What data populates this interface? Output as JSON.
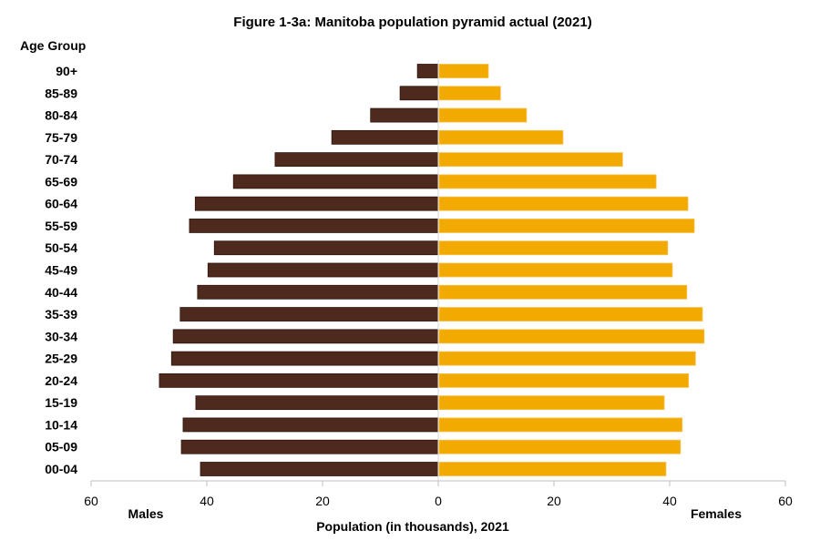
{
  "chart_data": {
    "type": "bar",
    "orientation": "horizontal-pyramid",
    "title": "Figure 1-3a: Manitoba population pyramid actual (2021)",
    "category_axis_title": "Age Group",
    "xlabel": "Population (in thousands), 2021",
    "left_label": "Males",
    "right_label": "Females",
    "xlim": [
      -60,
      60
    ],
    "x_ticks": [
      60,
      40,
      20,
      0,
      20,
      40,
      60
    ],
    "grid": false,
    "categories": [
      "90+",
      "85-89",
      "80-84",
      "75-79",
      "70-74",
      "65-69",
      "60-64",
      "55-59",
      "50-54",
      "45-49",
      "40-44",
      "35-39",
      "30-34",
      "25-29",
      "20-24",
      "15-19",
      "10-14",
      "05-09",
      "00-04"
    ],
    "series": [
      {
        "name": "Males",
        "color": "#4E2A1E",
        "values": [
          3.6,
          6.6,
          11.7,
          18.4,
          28.2,
          35.4,
          42.0,
          43.0,
          38.7,
          39.8,
          41.6,
          44.6,
          45.8,
          46.1,
          48.2,
          41.9,
          44.1,
          44.4,
          41.1
        ]
      },
      {
        "name": "Females",
        "color": "#F2A900",
        "values": [
          8.5,
          10.6,
          15.1,
          21.4,
          31.7,
          37.5,
          43.0,
          44.1,
          39.5,
          40.3,
          42.8,
          45.5,
          45.8,
          44.3,
          43.1,
          38.9,
          42.0,
          41.7,
          39.2
        ]
      }
    ]
  }
}
